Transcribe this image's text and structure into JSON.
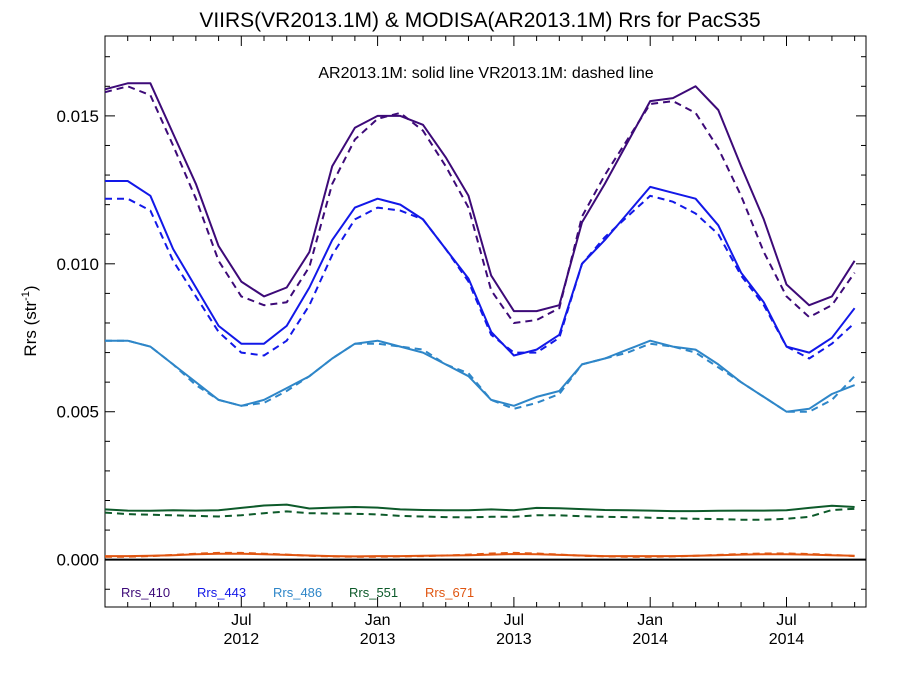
{
  "chart_data": {
    "type": "line",
    "title": "VIIRS(VR2013.1M) & MODISA(AR2013.1M)  Rrs for PacS35",
    "ylabel": "Rrs (str",
    "ylabel_sup": "-1",
    "ylabel_close": ")",
    "annotation": "AR2013.1M: solid line   VR2013.1M: dashed line",
    "x_start": "2012-01",
    "x_ticks": [
      {
        "month": 6,
        "line1": "Jul",
        "line2": "2012"
      },
      {
        "month": 12,
        "line1": "Jan",
        "line2": "2013"
      },
      {
        "month": 18,
        "line1": "Jul",
        "line2": "2013"
      },
      {
        "month": 24,
        "line1": "Jan",
        "line2": "2014"
      },
      {
        "month": 30,
        "line1": "Jul",
        "line2": "2014"
      }
    ],
    "xlim": [
      0,
      33.5
    ],
    "ylim": [
      -0.0016,
      0.0177
    ],
    "y_ticks": [
      {
        "value": 0.0,
        "label": "0.000"
      },
      {
        "value": 0.005,
        "label": "0.005"
      },
      {
        "value": 0.01,
        "label": "0.010"
      },
      {
        "value": 0.015,
        "label": "0.015"
      }
    ],
    "grid": false,
    "legend_position": "bottom-left",
    "x": [
      0,
      1,
      2,
      3,
      4,
      5,
      6,
      7,
      8,
      9,
      10,
      11,
      12,
      13,
      14,
      15,
      16,
      17,
      18,
      19,
      20,
      21,
      22,
      23,
      24,
      25,
      26,
      27,
      28,
      29,
      30,
      31,
      32,
      33
    ],
    "series": [
      {
        "name": "Rrs_410",
        "color": "#3d0a78",
        "style": "solid",
        "values": [
          0.0159,
          0.0161,
          0.0161,
          0.0144,
          0.0127,
          0.0106,
          0.0094,
          0.0089,
          0.0092,
          0.0104,
          0.0133,
          0.0146,
          0.015,
          0.015,
          0.0147,
          0.0136,
          0.0123,
          0.0096,
          0.0084,
          0.0084,
          0.0086,
          0.0114,
          0.0127,
          0.0141,
          0.0155,
          0.0156,
          0.016,
          0.0152,
          0.0133,
          0.0115,
          0.0093,
          0.0086,
          0.0089,
          0.0101
        ]
      },
      {
        "name": "Rrs_410",
        "color": "#3d0a78",
        "style": "dashed",
        "values": [
          0.0158,
          0.016,
          0.0157,
          0.014,
          0.0122,
          0.0101,
          0.0089,
          0.0086,
          0.0087,
          0.0099,
          0.0127,
          0.0142,
          0.0149,
          0.0151,
          0.0145,
          0.0133,
          0.0119,
          0.0091,
          0.008,
          0.0081,
          0.0085,
          0.0116,
          0.013,
          0.0142,
          0.0154,
          0.0155,
          0.0151,
          0.0139,
          0.0123,
          0.0104,
          0.0089,
          0.0082,
          0.0086,
          0.0097
        ]
      },
      {
        "name": "Rrs_443",
        "color": "#1218e8",
        "style": "solid",
        "values": [
          0.0128,
          0.0128,
          0.0123,
          0.0105,
          0.0092,
          0.0079,
          0.0073,
          0.0073,
          0.0079,
          0.0092,
          0.0108,
          0.0119,
          0.0122,
          0.012,
          0.0115,
          0.0105,
          0.0095,
          0.0077,
          0.0069,
          0.0071,
          0.0076,
          0.01,
          0.0108,
          0.0117,
          0.0126,
          0.0124,
          0.0122,
          0.0113,
          0.0097,
          0.0087,
          0.0072,
          0.007,
          0.0075,
          0.0085
        ]
      },
      {
        "name": "Rrs_443",
        "color": "#1218e8",
        "style": "dashed",
        "values": [
          0.0122,
          0.0122,
          0.0118,
          0.0101,
          0.0089,
          0.0077,
          0.007,
          0.0069,
          0.0074,
          0.0086,
          0.0103,
          0.0115,
          0.0119,
          0.0118,
          0.0115,
          0.0105,
          0.0094,
          0.0076,
          0.007,
          0.007,
          0.0075,
          0.01,
          0.0109,
          0.0116,
          0.0123,
          0.0121,
          0.0117,
          0.011,
          0.0096,
          0.0086,
          0.0072,
          0.0068,
          0.0073,
          0.008
        ]
      },
      {
        "name": "Rrs_486",
        "color": "#2e86c8",
        "style": "solid",
        "values": [
          0.0074,
          0.0074,
          0.0072,
          0.0066,
          0.006,
          0.0054,
          0.0052,
          0.0054,
          0.0058,
          0.0062,
          0.0068,
          0.0073,
          0.0074,
          0.0072,
          0.007,
          0.0066,
          0.0062,
          0.0054,
          0.0052,
          0.0055,
          0.0057,
          0.0066,
          0.0068,
          0.0071,
          0.0074,
          0.0072,
          0.0071,
          0.0066,
          0.006,
          0.0055,
          0.005,
          0.0051,
          0.0056,
          0.0059
        ]
      },
      {
        "name": "Rrs_486",
        "color": "#2e86c8",
        "style": "dashed",
        "values": [
          0.0074,
          0.0074,
          0.0072,
          0.0066,
          0.0059,
          0.0054,
          0.0052,
          0.0053,
          0.0057,
          0.0062,
          0.0068,
          0.0073,
          0.0073,
          0.0072,
          0.0071,
          0.0066,
          0.0063,
          0.0054,
          0.0051,
          0.0053,
          0.0056,
          0.0066,
          0.0068,
          0.007,
          0.0073,
          0.0072,
          0.007,
          0.0065,
          0.006,
          0.0055,
          0.005,
          0.005,
          0.0054,
          0.0062
        ]
      },
      {
        "name": "Rrs_551",
        "color": "#0d5a2a",
        "style": "solid",
        "values": [
          0.0017,
          0.00166,
          0.00165,
          0.00167,
          0.00166,
          0.00167,
          0.00175,
          0.00183,
          0.00186,
          0.00173,
          0.00176,
          0.00178,
          0.00176,
          0.0017,
          0.00168,
          0.00167,
          0.00167,
          0.0017,
          0.00167,
          0.00175,
          0.00174,
          0.00171,
          0.00168,
          0.00167,
          0.00166,
          0.00164,
          0.00164,
          0.00165,
          0.00166,
          0.00166,
          0.00167,
          0.00175,
          0.00182,
          0.00178
        ]
      },
      {
        "name": "Rrs_551",
        "color": "#0d5a2a",
        "style": "dashed",
        "values": [
          0.00159,
          0.00154,
          0.00152,
          0.0015,
          0.00148,
          0.00146,
          0.0015,
          0.00157,
          0.00163,
          0.00157,
          0.00156,
          0.00155,
          0.00153,
          0.00148,
          0.00146,
          0.00144,
          0.00143,
          0.00145,
          0.00145,
          0.0015,
          0.0015,
          0.00147,
          0.00145,
          0.00144,
          0.00142,
          0.0014,
          0.00138,
          0.00137,
          0.00135,
          0.00135,
          0.00138,
          0.00145,
          0.00168,
          0.00172
        ]
      },
      {
        "name": "Rrs_671",
        "color": "#e05510",
        "style": "solid",
        "values": [
          0.00012,
          0.00012,
          0.00013,
          0.00015,
          0.00018,
          0.0002,
          0.0002,
          0.00018,
          0.00016,
          0.00014,
          0.00012,
          0.00011,
          0.00012,
          0.00012,
          0.00013,
          0.00014,
          0.00015,
          0.00017,
          0.00019,
          0.00018,
          0.00016,
          0.00014,
          0.00012,
          0.00012,
          0.00012,
          0.00012,
          0.00013,
          0.00015,
          0.00017,
          0.00018,
          0.00018,
          0.00017,
          0.00015,
          0.00013
        ]
      },
      {
        "name": "Rrs_671",
        "color": "#e05510",
        "style": "dashed",
        "values": [
          0.0001,
          0.0001,
          0.00012,
          0.00016,
          0.0002,
          0.00023,
          0.00023,
          0.0002,
          0.00017,
          0.00013,
          0.00011,
          0.0001,
          0.0001,
          0.00011,
          0.00012,
          0.00014,
          0.00017,
          0.00021,
          0.00023,
          0.00021,
          0.00017,
          0.00013,
          0.00011,
          0.0001,
          0.0001,
          0.00011,
          0.00013,
          0.00016,
          0.00019,
          0.00021,
          0.00021,
          0.00019,
          0.00016,
          0.00012
        ]
      }
    ],
    "legend": [
      {
        "label": "Rrs_410",
        "color": "#3d0a78"
      },
      {
        "label": "Rrs_443",
        "color": "#1218e8"
      },
      {
        "label": "Rrs_486",
        "color": "#2e86c8"
      },
      {
        "label": "Rrs_551",
        "color": "#0d5a2a"
      },
      {
        "label": "Rrs_671",
        "color": "#e05510"
      }
    ],
    "zero_line_color": "#000000"
  }
}
